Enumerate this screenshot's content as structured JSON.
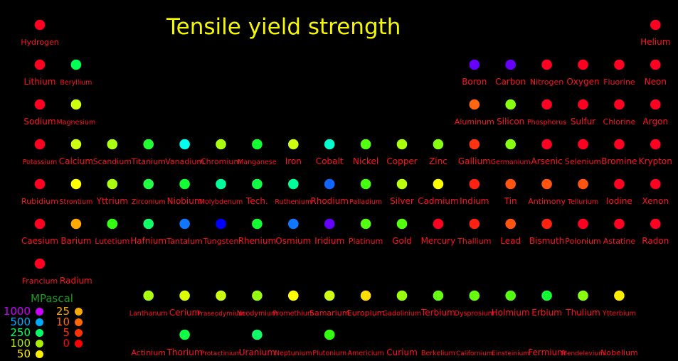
{
  "chart_data": {
    "type": "scatter",
    "title": "Tensile yield strength",
    "unit": "MPascal",
    "legend": [
      {
        "label": "1000",
        "color": "#cc00ff"
      },
      {
        "label": "500",
        "color": "#00aaff"
      },
      {
        "label": "250",
        "color": "#00ff66"
      },
      {
        "label": "100",
        "color": "#aaee00"
      },
      {
        "label": "50",
        "color": "#ffee00"
      },
      {
        "label": "25",
        "color": "#ffaa00"
      },
      {
        "label": "10",
        "color": "#ff6600"
      },
      {
        "label": "5",
        "color": "#ff3300"
      },
      {
        "label": "0",
        "color": "#ff0000"
      }
    ],
    "elements": [
      {
        "name": "Hydrogen",
        "row": 1,
        "col": 1,
        "color": "#ff0022"
      },
      {
        "name": "Helium",
        "row": 1,
        "col": 18,
        "color": "#ff0022"
      },
      {
        "name": "Lithium",
        "row": 2,
        "col": 1,
        "color": "#ff0022"
      },
      {
        "name": "Beryllium",
        "row": 2,
        "col": 2,
        "color": "#00ff55"
      },
      {
        "name": "Boron",
        "row": 2,
        "col": 13,
        "color": "#6600ff"
      },
      {
        "name": "Carbon",
        "row": 2,
        "col": 14,
        "color": "#6600ff"
      },
      {
        "name": "Nitrogen",
        "row": 2,
        "col": 15,
        "color": "#ff0022"
      },
      {
        "name": "Oxygen",
        "row": 2,
        "col": 16,
        "color": "#ff0022"
      },
      {
        "name": "Fluorine",
        "row": 2,
        "col": 17,
        "color": "#ff0022"
      },
      {
        "name": "Neon",
        "row": 2,
        "col": 18,
        "color": "#ff0022"
      },
      {
        "name": "Sodium",
        "row": 3,
        "col": 1,
        "color": "#ff0022"
      },
      {
        "name": "Magnesium",
        "row": 3,
        "col": 2,
        "color": "#ccff11"
      },
      {
        "name": "Aluminum",
        "row": 3,
        "col": 13,
        "color": "#ff6611"
      },
      {
        "name": "Silicon",
        "row": 3,
        "col": 14,
        "color": "#88ff11"
      },
      {
        "name": "Phosphorus",
        "row": 3,
        "col": 15,
        "color": "#ff0022"
      },
      {
        "name": "Sulfur",
        "row": 3,
        "col": 16,
        "color": "#ff0022"
      },
      {
        "name": "Chlorine",
        "row": 3,
        "col": 17,
        "color": "#ff0022"
      },
      {
        "name": "Argon",
        "row": 3,
        "col": 18,
        "color": "#ff0022"
      },
      {
        "name": "Potassium",
        "row": 4,
        "col": 1,
        "color": "#ff0022"
      },
      {
        "name": "Calcium",
        "row": 4,
        "col": 2,
        "color": "#ccff11"
      },
      {
        "name": "Scandium",
        "row": 4,
        "col": 3,
        "color": "#aaff11"
      },
      {
        "name": "Titanium",
        "row": 4,
        "col": 4,
        "color": "#22ff33"
      },
      {
        "name": "Vanadium",
        "row": 4,
        "col": 5,
        "color": "#00ffee"
      },
      {
        "name": "Chromium",
        "row": 4,
        "col": 6,
        "color": "#aaff11"
      },
      {
        "name": "Manganese",
        "row": 4,
        "col": 7,
        "color": "#11ff33"
      },
      {
        "name": "Iron",
        "row": 4,
        "col": 8,
        "color": "#ccff11"
      },
      {
        "name": "Cobalt",
        "row": 4,
        "col": 9,
        "color": "#00ffcc"
      },
      {
        "name": "Nickel",
        "row": 4,
        "col": 10,
        "color": "#55ff11"
      },
      {
        "name": "Copper",
        "row": 4,
        "col": 11,
        "color": "#aaff11"
      },
      {
        "name": "Zinc",
        "row": 4,
        "col": 12,
        "color": "#88ff11"
      },
      {
        "name": "Gallium",
        "row": 4,
        "col": 13,
        "color": "#ff3311"
      },
      {
        "name": "Germanium",
        "row": 4,
        "col": 14,
        "color": "#88ff11"
      },
      {
        "name": "Arsenic",
        "row": 4,
        "col": 15,
        "color": "#ff0022"
      },
      {
        "name": "Selenium",
        "row": 4,
        "col": 16,
        "color": "#ff0022"
      },
      {
        "name": "Bromine",
        "row": 4,
        "col": 17,
        "color": "#ff0022"
      },
      {
        "name": "Krypton",
        "row": 4,
        "col": 18,
        "color": "#ff0022"
      },
      {
        "name": "Rubidium",
        "row": 5,
        "col": 1,
        "color": "#ff0022"
      },
      {
        "name": "Strontium",
        "row": 5,
        "col": 2,
        "color": "#ffff00"
      },
      {
        "name": "Yttrium",
        "row": 5,
        "col": 3,
        "color": "#aaff11"
      },
      {
        "name": "Zirconium",
        "row": 5,
        "col": 4,
        "color": "#22ff44"
      },
      {
        "name": "Niobium",
        "row": 5,
        "col": 5,
        "color": "#11ff33"
      },
      {
        "name": "Molybdenum",
        "row": 5,
        "col": 6,
        "color": "#00ff99"
      },
      {
        "name": "Tech.",
        "row": 5,
        "col": 7,
        "color": "#11ff44"
      },
      {
        "name": "Ruthenium",
        "row": 5,
        "col": 8,
        "color": "#00ff99"
      },
      {
        "name": "Rhodium",
        "row": 5,
        "col": 9,
        "color": "#1166ff"
      },
      {
        "name": "Palladium",
        "row": 5,
        "col": 10,
        "color": "#44ff11"
      },
      {
        "name": "Silver",
        "row": 5,
        "col": 11,
        "color": "#bbff11"
      },
      {
        "name": "Cadmium",
        "row": 5,
        "col": 12,
        "color": "#ffff00"
      },
      {
        "name": "Indium",
        "row": 5,
        "col": 13,
        "color": "#ff2211"
      },
      {
        "name": "Tin",
        "row": 5,
        "col": 14,
        "color": "#ff5511"
      },
      {
        "name": "Antimony",
        "row": 5,
        "col": 15,
        "color": "#ff5511"
      },
      {
        "name": "Tellurium",
        "row": 5,
        "col": 16,
        "color": "#ff5511"
      },
      {
        "name": "Iodine",
        "row": 5,
        "col": 17,
        "color": "#ff0022"
      },
      {
        "name": "Xenon",
        "row": 5,
        "col": 18,
        "color": "#ff0022"
      },
      {
        "name": "Caesium",
        "row": 6,
        "col": 1,
        "color": "#ff0022"
      },
      {
        "name": "Barium",
        "row": 6,
        "col": 2,
        "color": "#ffaa00"
      },
      {
        "name": "Lutetium",
        "row": 6,
        "col": 3,
        "color": "#33ff11"
      },
      {
        "name": "Hafnium",
        "row": 6,
        "col": 4,
        "color": "#11ff66"
      },
      {
        "name": "Tantalum",
        "row": 6,
        "col": 5,
        "color": "#1177ff"
      },
      {
        "name": "Tungsten",
        "row": 6,
        "col": 6,
        "color": "#0000ff"
      },
      {
        "name": "Rhenium",
        "row": 6,
        "col": 7,
        "color": "#11ff33"
      },
      {
        "name": "Osmium",
        "row": 6,
        "col": 8,
        "color": "#1177ff"
      },
      {
        "name": "Iridium",
        "row": 6,
        "col": 9,
        "color": "#6600ff"
      },
      {
        "name": "Platinum",
        "row": 6,
        "col": 10,
        "color": "#55ff11"
      },
      {
        "name": "Gold",
        "row": 6,
        "col": 11,
        "color": "#55ff11"
      },
      {
        "name": "Mercury",
        "row": 6,
        "col": 12,
        "color": "#ff0022"
      },
      {
        "name": "Thallium",
        "row": 6,
        "col": 13,
        "color": "#ff2211"
      },
      {
        "name": "Lead",
        "row": 6,
        "col": 14,
        "color": "#ff5511"
      },
      {
        "name": "Bismuth",
        "row": 6,
        "col": 15,
        "color": "#ff2211"
      },
      {
        "name": "Polonium",
        "row": 6,
        "col": 16,
        "color": "#ff0022"
      },
      {
        "name": "Astatine",
        "row": 6,
        "col": 17,
        "color": "#ff0022"
      },
      {
        "name": "Radon",
        "row": 6,
        "col": 18,
        "color": "#ff0022"
      },
      {
        "name": "Francium",
        "row": 7,
        "col": 1,
        "color": "#ff0022"
      },
      {
        "name": "Radium",
        "row": 7,
        "col": 2,
        "color": null
      },
      {
        "name": "Lanthanum",
        "row": 8,
        "col": 4,
        "color": "#aaff11"
      },
      {
        "name": "Cerium",
        "row": 8,
        "col": 5,
        "color": "#ddff00"
      },
      {
        "name": "Praseodymium",
        "row": 8,
        "col": 6,
        "color": "#ccff11"
      },
      {
        "name": "Neodymium",
        "row": 8,
        "col": 7,
        "color": "#99ff11"
      },
      {
        "name": "Promethium",
        "row": 8,
        "col": 8,
        "color": "#ffff00"
      },
      {
        "name": "Samarium",
        "row": 8,
        "col": 9,
        "color": "#ccff11"
      },
      {
        "name": "Europium",
        "row": 8,
        "col": 10,
        "color": "#ffdd00"
      },
      {
        "name": "Gadolinium",
        "row": 8,
        "col": 11,
        "color": "#99ff11"
      },
      {
        "name": "Terbium",
        "row": 8,
        "col": 12,
        "color": "#66ff11"
      },
      {
        "name": "Dysprosium",
        "row": 8,
        "col": 13,
        "color": "#66ff11"
      },
      {
        "name": "Holmium",
        "row": 8,
        "col": 14,
        "color": "#55ff11"
      },
      {
        "name": "Erbium",
        "row": 8,
        "col": 15,
        "color": "#11ff33"
      },
      {
        "name": "Thulium",
        "row": 8,
        "col": 16,
        "color": "#88ff11"
      },
      {
        "name": "Ytterbium",
        "row": 8,
        "col": 17,
        "color": "#ffee00"
      },
      {
        "name": "Actinium",
        "row": 9,
        "col": 4,
        "color": null
      },
      {
        "name": "Thorium",
        "row": 9,
        "col": 5,
        "color": "#11ff44"
      },
      {
        "name": "Protactinium",
        "row": 9,
        "col": 6,
        "color": null
      },
      {
        "name": "Uranium",
        "row": 9,
        "col": 7,
        "color": "#11ff66"
      },
      {
        "name": "Neptunium",
        "row": 9,
        "col": 8,
        "color": null
      },
      {
        "name": "Plutonium",
        "row": 9,
        "col": 9,
        "color": "#33ff11"
      },
      {
        "name": "Americium",
        "row": 9,
        "col": 10,
        "color": null
      },
      {
        "name": "Curium",
        "row": 9,
        "col": 11,
        "color": null
      },
      {
        "name": "Berkelium",
        "row": 9,
        "col": 12,
        "color": null
      },
      {
        "name": "Californium",
        "row": 9,
        "col": 13,
        "color": null
      },
      {
        "name": "Einsteinium",
        "row": 9,
        "col": 14,
        "color": null
      },
      {
        "name": "Fermium",
        "row": 9,
        "col": 15,
        "color": null
      },
      {
        "name": "Mendelevium",
        "row": 9,
        "col": 16,
        "color": null
      },
      {
        "name": "Nobelium",
        "row": 9,
        "col": 17,
        "color": null
      }
    ]
  }
}
